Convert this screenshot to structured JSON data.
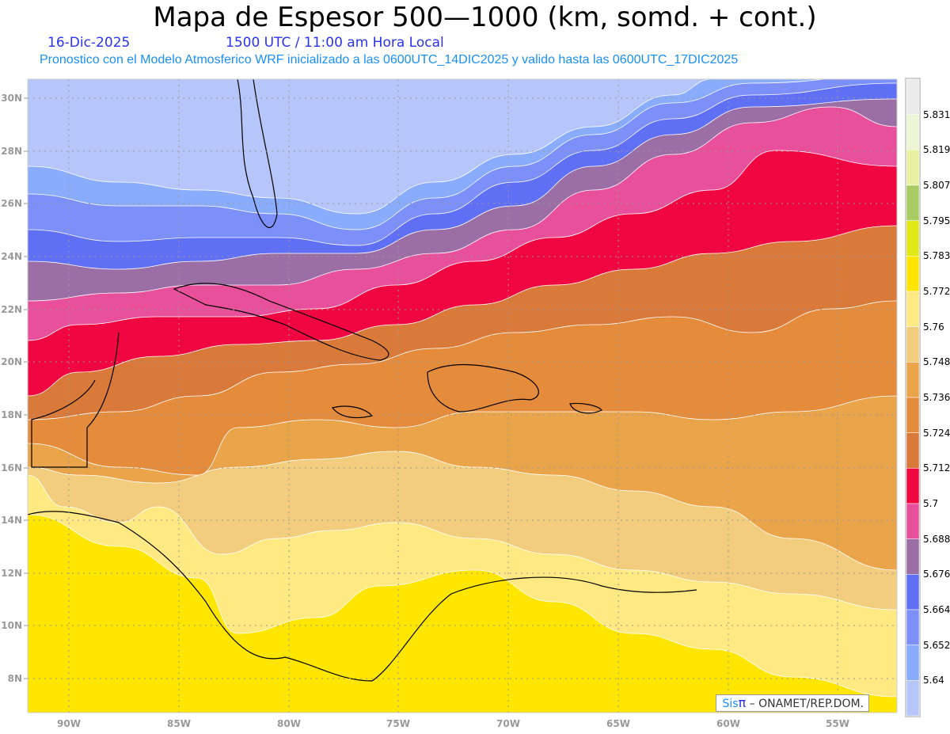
{
  "header": {
    "title": "Mapa de Espesor 500—1000 (km, somd. + cont.)",
    "date": "16-Dic-2025",
    "time": "1500 UTC / 11:00 am Hora Local",
    "forecast": "Pronostico con el Modelo Atmosferico WRF inicializado a las 0600UTC_14DIC2025 y valido hasta las  0600UTC_17DIC2025"
  },
  "axes": {
    "lon_labels": [
      "90W",
      "85W",
      "80W",
      "75W",
      "70W",
      "65W",
      "60W",
      "55W"
    ],
    "lat_labels": [
      "30N",
      "28N",
      "26N",
      "24N",
      "22N",
      "20N",
      "18N",
      "16N",
      "14N",
      "12N",
      "10N",
      "8N"
    ]
  },
  "colorbar": {
    "levels": [
      "5.831",
      "5.819",
      "5.807",
      "5.795",
      "5.783",
      "5.772",
      "5.76",
      "5.748",
      "5.736",
      "5.724",
      "5.712",
      "5.7",
      "5.688",
      "5.676",
      "5.664",
      "5.652",
      "5.64"
    ],
    "colors": [
      "#ebebeb",
      "#eef5d4",
      "#e6f2a0",
      "#a8cc62",
      "#e0e815",
      "#ffe600",
      "#ffe982",
      "#f2cd7d",
      "#eaa44a",
      "#e58b3c",
      "#d97a3a",
      "#f00640",
      "#e9509c",
      "#9c6ea6",
      "#6070f5",
      "#7d90fa",
      "#8aacfd",
      "#b6c6fb"
    ]
  },
  "credit": {
    "sis": "Sis",
    "pi": "π",
    "org": "– ONAMET/REP.DOM."
  }
}
